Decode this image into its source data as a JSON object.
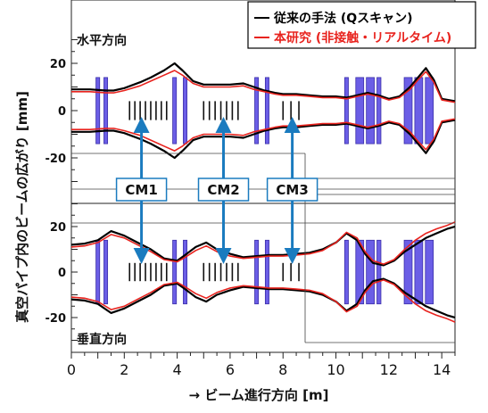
{
  "chart_data": {
    "type": "line",
    "ylabel": "真空パイプ内のビームの広がり [mm]",
    "xlabel": "→ ビーム進行方向 [m]",
    "xlim": [
      0,
      14.5
    ],
    "x_ticks": [
      0,
      2,
      4,
      6,
      8,
      10,
      12,
      14
    ],
    "legend": {
      "placement": "top-right",
      "entries": [
        {
          "name": "従来の手法 (Qスキャン)",
          "color": "#000000"
        },
        {
          "name": "本研究 (非接触・リアルタイム)",
          "color": "#e8231e"
        }
      ]
    },
    "panels": [
      {
        "label": "水平方向",
        "ylim": [
          -30,
          30
        ],
        "y_ticks": [
          20,
          0,
          -20
        ],
        "series": [
          {
            "name": "従来の手法 (Qスキャン)",
            "x": [
              0,
              0.7,
              1.3,
              1.6,
              2.0,
              2.6,
              3.0,
              3.5,
              3.9,
              4.2,
              4.6,
              5.0,
              5.5,
              6.0,
              6.5,
              6.9,
              7.3,
              7.7,
              8.0,
              8.5,
              9.0,
              9.5,
              10.0,
              10.4,
              10.8,
              11.2,
              11.6,
              12.0,
              12.4,
              12.8,
              13.1,
              13.4,
              13.7,
              14.0,
              14.5
            ],
            "y": [
              9,
              9,
              8.5,
              8.5,
              9.5,
              12,
              14,
              17,
              20,
              17,
              12.5,
              11,
              11,
              11,
              11.5,
              10,
              8.5,
              7.5,
              7,
              7,
              6.5,
              6,
              6,
              5.5,
              6.5,
              7.5,
              6.5,
              5,
              6,
              10,
              14,
              18,
              13,
              5,
              4
            ]
          },
          {
            "name": "本研究 (非接触・リアルタイム)",
            "x": [
              0,
              0.7,
              1.3,
              1.6,
              2.0,
              2.6,
              3.0,
              3.5,
              3.9,
              4.2,
              4.6,
              5.0,
              5.5,
              6.0,
              6.5,
              6.9,
              7.3,
              7.7,
              8.0,
              8.5,
              9.0,
              9.5,
              10.0,
              10.4,
              10.8,
              11.2,
              11.6,
              12.0,
              12.4,
              12.8,
              13.1,
              13.4,
              13.7,
              14.0,
              14.5
            ],
            "y": [
              8,
              8,
              7.5,
              7.5,
              8.5,
              10.5,
              12.5,
              15,
              17,
              15,
              11.5,
              10,
              10,
              10,
              10.5,
              9,
              8,
              7,
              6.5,
              6.5,
              6,
              5.5,
              5.5,
              5,
              6,
              7,
              6,
              4.5,
              5.5,
              9,
              13,
              16.5,
              12,
              4.5,
              3.5
            ]
          }
        ]
      },
      {
        "label": "垂直方向",
        "ylim": [
          -30,
          30
        ],
        "y_ticks": [
          20,
          0,
          -20
        ],
        "series": [
          {
            "name": "従来の手法 (Qスキャン)",
            "x": [
              0,
              0.5,
              1.0,
              1.5,
              2.0,
              2.5,
              3.0,
              3.5,
              4.0,
              4.3,
              4.7,
              5.1,
              5.5,
              6.0,
              6.5,
              7.0,
              7.5,
              8.0,
              8.5,
              9.0,
              9.5,
              10.0,
              10.4,
              10.8,
              11.1,
              11.4,
              11.8,
              12.2,
              12.6,
              13.0,
              13.4,
              13.8,
              14.2,
              14.5
            ],
            "y": [
              12,
              12.5,
              14,
              18,
              16,
              13,
              10,
              6,
              5,
              7.5,
              11,
              13,
              10,
              8,
              6.5,
              7,
              7.5,
              7.5,
              8,
              8.5,
              10,
              13,
              17,
              14,
              8,
              4,
              3,
              5,
              9,
              12,
              15,
              17,
              19,
              20
            ]
          },
          {
            "name": "本研究 (非接触・リアルタイム)",
            "x": [
              0,
              0.5,
              1.0,
              1.5,
              2.0,
              2.5,
              3.0,
              3.5,
              4.0,
              4.3,
              4.7,
              5.1,
              5.5,
              6.0,
              6.5,
              7.0,
              7.5,
              8.0,
              8.5,
              9.0,
              9.5,
              10.0,
              10.4,
              10.8,
              11.1,
              11.4,
              11.8,
              12.2,
              12.6,
              13.0,
              13.4,
              13.8,
              14.2,
              14.5
            ],
            "y": [
              11,
              11.5,
              13,
              16.5,
              15,
              12,
              9,
              5.5,
              4.5,
              6.5,
              9.5,
              11.5,
              9,
              7,
              6,
              6.5,
              7,
              7,
              7.5,
              8,
              9.5,
              13,
              17.5,
              15,
              9,
              5,
              3.5,
              5.5,
              10,
              14,
              17,
              19,
              20.5,
              22
            ]
          }
        ]
      }
    ],
    "magnets": [
      {
        "x0": 0.93,
        "x1": 1.07,
        "h": 14
      },
      {
        "x0": 1.23,
        "x1": 1.37,
        "h": 14
      },
      {
        "x0": 3.83,
        "x1": 3.97,
        "h": 14
      },
      {
        "x0": 4.23,
        "x1": 4.37,
        "h": 14
      },
      {
        "x0": 6.93,
        "x1": 7.07,
        "h": 14
      },
      {
        "x0": 7.33,
        "x1": 7.47,
        "h": 14
      },
      {
        "x0": 10.33,
        "x1": 10.47,
        "h": 14
      },
      {
        "x0": 10.75,
        "x1": 11.05,
        "h": 14
      },
      {
        "x0": 11.15,
        "x1": 11.45,
        "h": 14
      },
      {
        "x0": 11.55,
        "x1": 11.7,
        "h": 14
      },
      {
        "x0": 12.58,
        "x1": 12.88,
        "h": 14
      },
      {
        "x0": 12.98,
        "x1": 13.28,
        "h": 14
      },
      {
        "x0": 13.38,
        "x1": 13.68,
        "h": 14
      }
    ],
    "ticks_groups": [
      {
        "x0": 2.2,
        "x1": 3.6,
        "n": 8
      },
      {
        "x0": 5.0,
        "x1": 6.3,
        "n": 7
      },
      {
        "x0": 8.0,
        "x1": 8.6,
        "n": 3
      }
    ],
    "monitors": [
      {
        "label": "CM1",
        "x": 2.65
      },
      {
        "label": "CM2",
        "x": 5.75
      },
      {
        "label": "CM3",
        "x": 8.35
      }
    ]
  }
}
